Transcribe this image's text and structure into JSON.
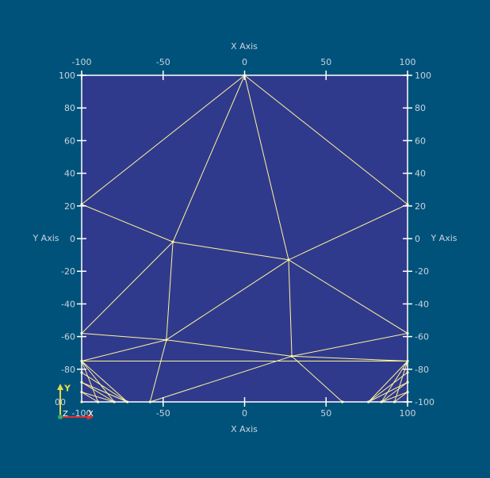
{
  "background_color": "#00527a",
  "plot_fill_color": "#303a8c",
  "mesh_color": "#fff59a",
  "axis_color": "#ffffff",
  "axis_text_color": "#c8d3de",
  "axes": {
    "x_title_top": "X Axis",
    "x_title_bottom": "X Axis",
    "y_title_left": "Y Axis",
    "y_title_right": "Y Axis",
    "xlim": [
      -100,
      100
    ],
    "ylim": [
      -100,
      100
    ],
    "x_ticks": [
      {
        "value": -100,
        "label": "-100"
      },
      {
        "value": -50,
        "label": "-50"
      },
      {
        "value": 0,
        "label": "0"
      },
      {
        "value": 50,
        "label": "50"
      },
      {
        "value": 100,
        "label": "100"
      }
    ],
    "x_ticks_bottom": [
      {
        "value": -50,
        "label": "-50"
      },
      {
        "value": 0,
        "label": "0"
      },
      {
        "value": 50,
        "label": "50"
      },
      {
        "value": 100,
        "label": "100"
      }
    ],
    "y_ticks_left": [
      {
        "value": 100,
        "label": "100"
      },
      {
        "value": 80,
        "label": "80"
      },
      {
        "value": 60,
        "label": "60"
      },
      {
        "value": 40,
        "label": "40"
      },
      {
        "value": 20,
        "label": "20"
      },
      {
        "value": 0,
        "label": "0"
      },
      {
        "value": -20,
        "label": "-20"
      },
      {
        "value": -40,
        "label": "-40"
      },
      {
        "value": -60,
        "label": "-60"
      },
      {
        "value": -80,
        "label": "-80"
      }
    ],
    "y_ticks_right": [
      {
        "value": 100,
        "label": "100"
      },
      {
        "value": 80,
        "label": "80"
      },
      {
        "value": 60,
        "label": "60"
      },
      {
        "value": 40,
        "label": "40"
      },
      {
        "value": 20,
        "label": "20"
      },
      {
        "value": 0,
        "label": "0"
      },
      {
        "value": -20,
        "label": "-20"
      },
      {
        "value": -40,
        "label": "-40"
      },
      {
        "value": -60,
        "label": "-60"
      },
      {
        "value": -80,
        "label": "-80"
      },
      {
        "value": -100,
        "label": "-100"
      }
    ],
    "corner_overlap_label": "00",
    "corner_overlap_label_bottom": "-100"
  },
  "orientation_widget": {
    "y_label": "Y",
    "z_label": "Z",
    "x_label": "X",
    "y_color": "#e8d94a",
    "x_color": "#e03030",
    "z_color": "#2fae6a"
  },
  "chart_data": {
    "type": "mesh",
    "title": "",
    "xlabel": "X Axis",
    "ylabel": "Y Axis",
    "xlim": [
      -100,
      100
    ],
    "ylim": [
      -100,
      100
    ],
    "nodes": [
      [
        -100,
        100
      ],
      [
        0,
        100
      ],
      [
        100,
        100
      ],
      [
        -100,
        21
      ],
      [
        100,
        21
      ],
      [
        -44,
        -2
      ],
      [
        27,
        -13
      ],
      [
        -100,
        -58
      ],
      [
        100,
        -58
      ],
      [
        -48,
        -62
      ],
      [
        29,
        -72
      ],
      [
        -100,
        -75
      ],
      [
        100,
        -75
      ],
      [
        -58,
        -100
      ],
      [
        60,
        -100
      ],
      [
        -100,
        -100
      ],
      [
        100,
        -100
      ],
      [
        -100,
        -94
      ],
      [
        -100,
        -88
      ],
      [
        -100,
        -82
      ],
      [
        -90,
        -100
      ],
      [
        -80,
        -100
      ],
      [
        -72,
        -100
      ],
      [
        100,
        -94
      ],
      [
        100,
        -88
      ],
      [
        100,
        -82
      ],
      [
        92,
        -100
      ],
      [
        84,
        -100
      ],
      [
        76,
        -100
      ]
    ],
    "edges": [
      [
        0,
        1
      ],
      [
        1,
        2
      ],
      [
        0,
        3
      ],
      [
        2,
        4
      ],
      [
        3,
        7
      ],
      [
        4,
        8
      ],
      [
        7,
        11
      ],
      [
        8,
        12
      ],
      [
        1,
        3
      ],
      [
        1,
        4
      ],
      [
        1,
        5
      ],
      [
        1,
        6
      ],
      [
        6,
        4
      ],
      [
        3,
        5
      ],
      [
        5,
        6
      ],
      [
        5,
        7
      ],
      [
        5,
        9
      ],
      [
        6,
        9
      ],
      [
        6,
        10
      ],
      [
        6,
        8
      ],
      [
        7,
        9
      ],
      [
        9,
        10
      ],
      [
        10,
        8
      ],
      [
        11,
        9
      ],
      [
        9,
        13
      ],
      [
        13,
        10
      ],
      [
        10,
        12
      ],
      [
        10,
        14
      ],
      [
        11,
        12
      ],
      [
        15,
        16
      ],
      [
        11,
        15
      ],
      [
        12,
        16
      ],
      [
        11,
        20
      ],
      [
        11,
        21
      ],
      [
        11,
        22
      ],
      [
        17,
        20
      ],
      [
        18,
        21
      ],
      [
        19,
        22
      ],
      [
        17,
        21
      ],
      [
        18,
        22
      ],
      [
        12,
        26
      ],
      [
        12,
        27
      ],
      [
        12,
        28
      ],
      [
        23,
        26
      ],
      [
        24,
        27
      ],
      [
        25,
        28
      ],
      [
        23,
        27
      ],
      [
        24,
        28
      ],
      [
        22,
        13
      ],
      [
        28,
        14
      ]
    ]
  }
}
